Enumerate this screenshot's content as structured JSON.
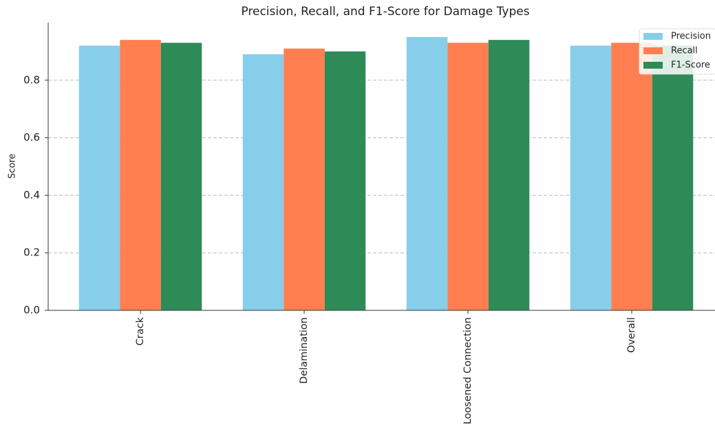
{
  "chart_data": {
    "type": "bar",
    "title": "Precision, Recall, and F1-Score for Damage Types",
    "y_label": "Score",
    "categories": [
      "Crack",
      "Delamination",
      "Loosened Connection",
      "Overall"
    ],
    "series": [
      {
        "name": "Precision",
        "color": "#87ceeb",
        "values": [
          0.92,
          0.89,
          0.95,
          0.92
        ]
      },
      {
        "name": "Recall",
        "color": "#ff7f50",
        "values": [
          0.94,
          0.91,
          0.93,
          0.93
        ]
      },
      {
        "name": "F1-Score",
        "color": "#2e8b57",
        "values": [
          0.93,
          0.9,
          0.94,
          0.92
        ]
      }
    ],
    "ylim": [
      0,
      1.0
    ],
    "yticks": [
      {
        "value": 0,
        "label": "0.0"
      },
      0.2,
      0.4,
      0.6,
      0.8
    ],
    "grid": true,
    "legend": "upper right"
  }
}
